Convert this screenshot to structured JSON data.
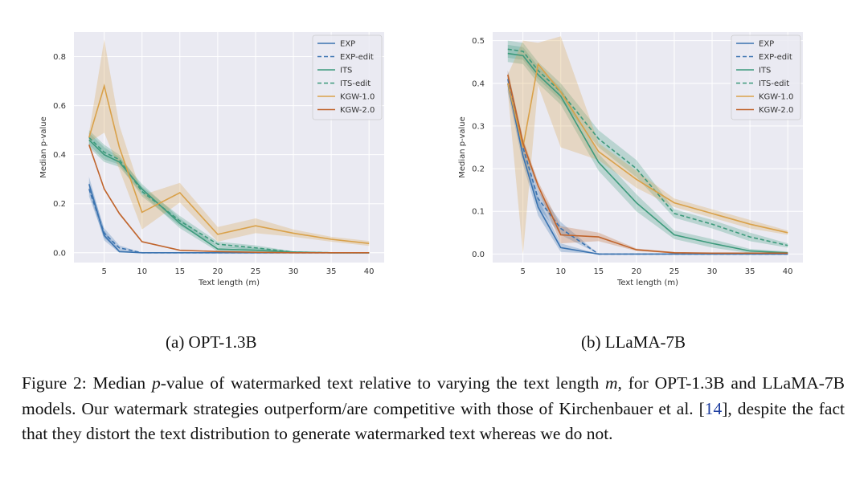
{
  "chart_data": [
    {
      "id": "opt",
      "type": "line",
      "title": "",
      "xlabel": "Text length (m)",
      "ylabel": "Median p-value",
      "xlim": [
        1,
        42
      ],
      "ylim": [
        -0.04,
        0.9
      ],
      "xticks": [
        5,
        10,
        15,
        20,
        25,
        30,
        35,
        40
      ],
      "yticks": [
        0.0,
        0.2,
        0.4,
        0.6,
        0.8
      ],
      "ytick_labels": [
        "0.0",
        "0.2",
        "0.4",
        "0.6",
        "0.8"
      ],
      "grid": true,
      "legend": "top-right",
      "x": [
        3,
        5,
        7,
        10,
        15,
        20,
        25,
        30,
        35,
        40
      ],
      "series": [
        {
          "name": "EXP",
          "color": "#3b73b0",
          "dash": "solid",
          "values": [
            0.28,
            0.07,
            0.005,
            0.0,
            0.0,
            0.0,
            0.0,
            0.0,
            0.0,
            0.0
          ],
          "band": [
            0.03,
            0.02,
            0.005,
            0,
            0,
            0,
            0,
            0,
            0,
            0
          ]
        },
        {
          "name": "EXP-edit",
          "color": "#3b73b0",
          "dash": "dashed",
          "values": [
            0.26,
            0.08,
            0.02,
            0.0,
            0.0,
            0.0,
            0.0,
            0.0,
            0.0,
            0.0
          ],
          "band": [
            0.03,
            0.02,
            0.01,
            0,
            0,
            0,
            0,
            0,
            0,
            0
          ]
        },
        {
          "name": "ITS",
          "color": "#3d9a7c",
          "dash": "solid",
          "values": [
            0.46,
            0.4,
            0.37,
            0.26,
            0.12,
            0.015,
            0.01,
            0.003,
            0.0,
            0.0
          ],
          "band": [
            0.03,
            0.03,
            0.02,
            0.02,
            0.02,
            0.01,
            0.01,
            0.003,
            0,
            0
          ]
        },
        {
          "name": "ITS-edit",
          "color": "#3d9a7c",
          "dash": "dashed",
          "values": [
            0.47,
            0.41,
            0.38,
            0.25,
            0.13,
            0.035,
            0.02,
            0.003,
            0.0,
            0.0
          ],
          "band": [
            0.03,
            0.03,
            0.02,
            0.02,
            0.02,
            0.01,
            0.01,
            0.003,
            0,
            0
          ]
        },
        {
          "name": "KGW-1.0",
          "color": "#d9a14a",
          "dash": "solid",
          "values": [
            0.47,
            0.68,
            0.43,
            0.165,
            0.245,
            0.075,
            0.11,
            0.08,
            0.055,
            0.038
          ],
          "band": [
            0.02,
            0.19,
            0.09,
            0.07,
            0.04,
            0.03,
            0.03,
            0.015,
            0.01,
            0.01
          ]
        },
        {
          "name": "KGW-2.0",
          "color": "#c0642c",
          "dash": "solid",
          "values": [
            0.44,
            0.26,
            0.16,
            0.045,
            0.01,
            0.005,
            0.002,
            0.0,
            0.0,
            0.0
          ],
          "band": [
            0.005,
            0.005,
            0.005,
            0.003,
            0,
            0,
            0,
            0,
            0,
            0
          ]
        }
      ]
    },
    {
      "id": "llama",
      "type": "line",
      "title": "",
      "xlabel": "Text length (m)",
      "ylabel": "Median p-value",
      "xlim": [
        1,
        42
      ],
      "ylim": [
        -0.02,
        0.52
      ],
      "xticks": [
        5,
        10,
        15,
        20,
        25,
        30,
        35,
        40
      ],
      "yticks": [
        0.0,
        0.1,
        0.2,
        0.3,
        0.4,
        0.5
      ],
      "ytick_labels": [
        "0.0",
        "0.1",
        "0.2",
        "0.3",
        "0.4",
        "0.5"
      ],
      "grid": true,
      "legend": "top-right",
      "x": [
        3,
        5,
        7,
        10,
        15,
        20,
        25,
        30,
        35,
        40
      ],
      "series": [
        {
          "name": "EXP",
          "color": "#3b73b0",
          "dash": "solid",
          "values": [
            0.4,
            0.23,
            0.11,
            0.015,
            0.0,
            0.0,
            0.0,
            0.0,
            0.0,
            0.0
          ],
          "band": [
            0.02,
            0.02,
            0.02,
            0.01,
            0,
            0,
            0,
            0,
            0,
            0
          ]
        },
        {
          "name": "EXP-edit",
          "color": "#3b73b0",
          "dash": "dashed",
          "values": [
            0.41,
            0.25,
            0.13,
            0.06,
            0.0,
            0.0,
            0.0,
            0.0,
            0.0,
            0.0
          ],
          "band": [
            0.02,
            0.02,
            0.02,
            0.015,
            0,
            0,
            0,
            0,
            0,
            0
          ]
        },
        {
          "name": "ITS",
          "color": "#3d9a7c",
          "dash": "solid",
          "values": [
            0.47,
            0.465,
            0.42,
            0.37,
            0.215,
            0.12,
            0.045,
            0.025,
            0.007,
            0.003
          ],
          "band": [
            0.02,
            0.02,
            0.02,
            0.02,
            0.02,
            0.02,
            0.01,
            0.01,
            0.005,
            0.003
          ]
        },
        {
          "name": "ITS-edit",
          "color": "#3d9a7c",
          "dash": "dashed",
          "values": [
            0.48,
            0.475,
            0.43,
            0.38,
            0.27,
            0.2,
            0.095,
            0.07,
            0.04,
            0.02
          ],
          "band": [
            0.02,
            0.02,
            0.02,
            0.02,
            0.02,
            0.02,
            0.01,
            0.01,
            0.01,
            0.005
          ]
        },
        {
          "name": "KGW-1.0",
          "color": "#d9a14a",
          "dash": "solid",
          "values": [
            0.4,
            0.25,
            0.445,
            0.38,
            0.24,
            0.175,
            0.12,
            0.095,
            0.07,
            0.05
          ],
          "band": [
            0.02,
            0.25,
            0.05,
            0.13,
            0.02,
            0.02,
            0.01,
            0.01,
            0.01,
            0.005
          ]
        },
        {
          "name": "KGW-2.0",
          "color": "#c0642c",
          "dash": "solid",
          "values": [
            0.42,
            0.26,
            0.16,
            0.045,
            0.04,
            0.01,
            0.003,
            0.002,
            0.002,
            0.002
          ],
          "band": [
            0.01,
            0.01,
            0.01,
            0.02,
            0.01,
            0.003,
            0.002,
            0,
            0,
            0
          ]
        }
      ]
    }
  ],
  "subcaptions": {
    "a": "(a) OPT-1.3B",
    "b": "(b) LLaMA-7B"
  },
  "caption": {
    "prefix": "Figure 2:  Median ",
    "p": "p",
    "mid": "-value of watermarked text relative to varying the text length ",
    "m": "m",
    "rest1": ", for OPT-1.3B and LLaMA-7B models.  Our watermark strategies outperform/are competitive with those of Kirchenbauer et al. [",
    "ref": "14",
    "rest2": "], despite the fact that they distort the text distribution to generate watermarked text whereas we do not."
  }
}
